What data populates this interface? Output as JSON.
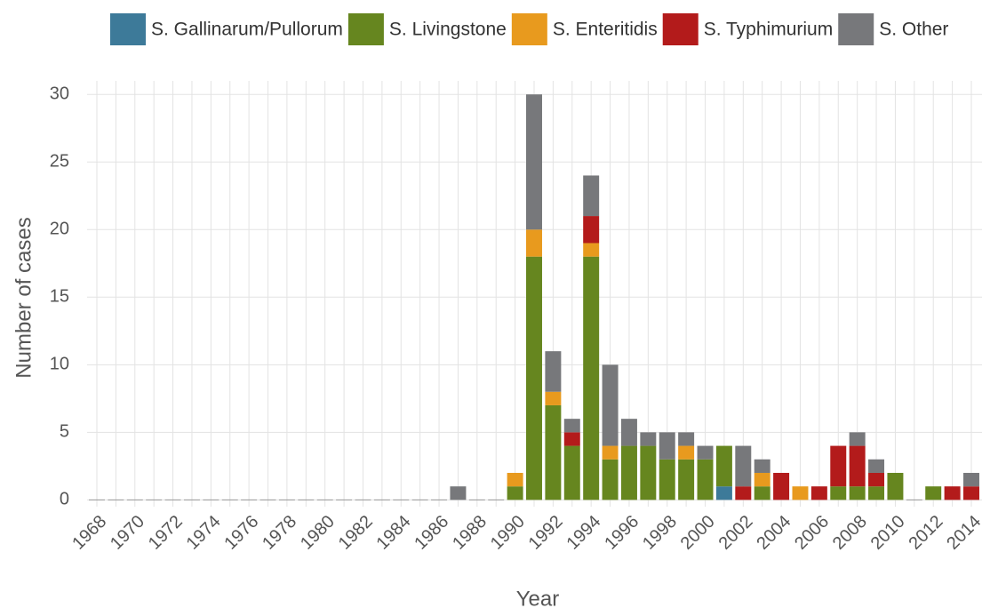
{
  "chart_data": {
    "type": "stacked_bar",
    "xlabel": "Year",
    "ylabel": "Number of cases",
    "categories": [
      "1968",
      null,
      "1970",
      null,
      "1972",
      null,
      "1974",
      null,
      "1976",
      null,
      "1978",
      null,
      "1980",
      null,
      "1982",
      null,
      "1984",
      null,
      "1986",
      null,
      "1988",
      null,
      "1990",
      null,
      "1992",
      null,
      "1994",
      null,
      "1996",
      null,
      "1998",
      null,
      "2000",
      null,
      "2002",
      null,
      "2004",
      null,
      "2006",
      null,
      "2008",
      null,
      "2010",
      null,
      "2012",
      null,
      "2014"
    ],
    "series": [
      {
        "name": "S. Gallinarum/Pullorum",
        "color": "#3d7a99",
        "values": [
          0,
          0,
          0,
          0,
          0,
          0,
          0,
          0,
          0,
          0,
          0,
          0,
          0,
          0,
          0,
          0,
          0,
          0,
          0,
          0,
          0,
          0,
          0,
          0,
          0,
          0,
          0,
          0,
          0,
          0,
          0,
          0,
          0,
          1,
          0,
          0,
          0,
          0,
          0,
          0,
          0,
          0,
          0,
          0,
          0,
          0,
          0
        ]
      },
      {
        "name": "S. Livingstone",
        "color": "#66861f",
        "values": [
          0,
          0,
          0,
          0,
          0,
          0,
          0,
          0,
          0,
          0,
          0,
          0,
          0,
          0,
          0,
          0,
          0,
          0,
          0,
          0,
          0,
          0,
          1,
          18,
          7,
          4,
          18,
          3,
          4,
          4,
          3,
          3,
          3,
          3,
          0,
          1,
          0,
          0,
          0,
          1,
          1,
          1,
          2,
          0,
          1,
          0,
          0
        ]
      },
      {
        "name": "S. Enteritidis",
        "color": "#e89a1e",
        "values": [
          0,
          0,
          0,
          0,
          0,
          0,
          0,
          0,
          0,
          0,
          0,
          0,
          0,
          0,
          0,
          0,
          0,
          0,
          0,
          0,
          0,
          0,
          1,
          2,
          1,
          0,
          1,
          1,
          0,
          0,
          0,
          1,
          0,
          0,
          0,
          1,
          0,
          1,
          0,
          0,
          0,
          0,
          0,
          0,
          0,
          0,
          0
        ]
      },
      {
        "name": "S. Typhimurium",
        "color": "#b31b1b",
        "values": [
          0,
          0,
          0,
          0,
          0,
          0,
          0,
          0,
          0,
          0,
          0,
          0,
          0,
          0,
          0,
          0,
          0,
          0,
          0,
          0,
          0,
          0,
          0,
          0,
          0,
          1,
          2,
          0,
          0,
          0,
          0,
          0,
          0,
          0,
          1,
          0,
          2,
          0,
          1,
          3,
          3,
          1,
          0,
          0,
          0,
          1,
          1
        ]
      },
      {
        "name": "S. Other",
        "color": "#77787b",
        "values": [
          0,
          0,
          0,
          0,
          0,
          0,
          0,
          0,
          0,
          0,
          0,
          0,
          0,
          0,
          0,
          0,
          0,
          0,
          0,
          1,
          0,
          0,
          0,
          10,
          3,
          1,
          3,
          6,
          2,
          1,
          2,
          1,
          1,
          0,
          3,
          1,
          0,
          0,
          0,
          0,
          1,
          1,
          0,
          0,
          0,
          0,
          1
        ]
      }
    ],
    "ylim": [
      -0.5,
      31
    ],
    "yticks": [
      0,
      5,
      10,
      15,
      20,
      25,
      30
    ],
    "grid": true,
    "legend": "top"
  }
}
